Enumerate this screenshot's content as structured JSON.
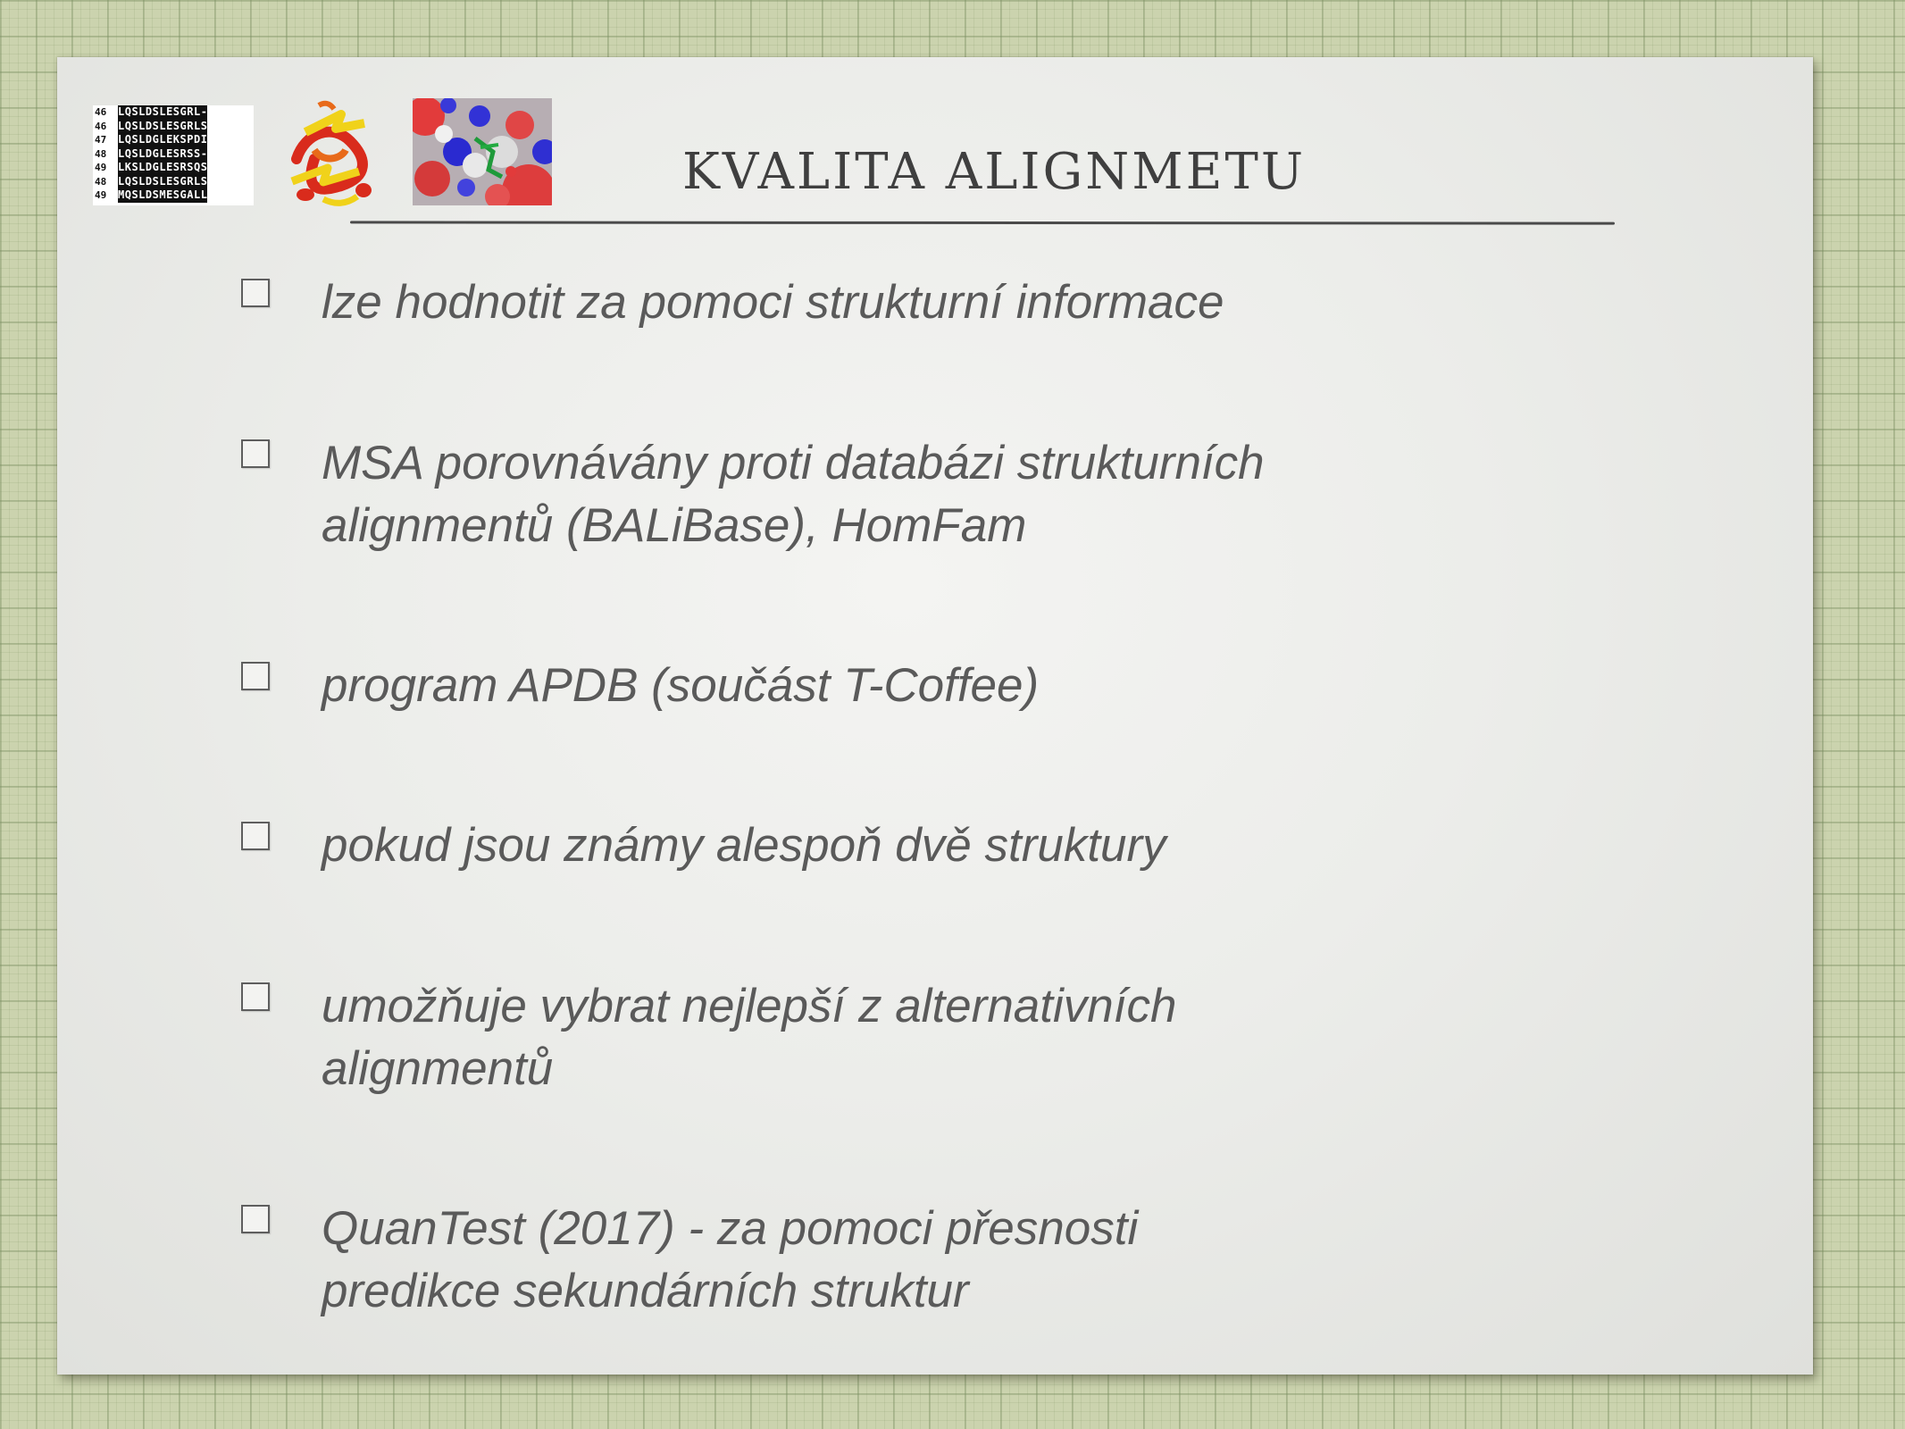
{
  "slide": {
    "title": "KVALITA ALIGNMETU",
    "bullets": [
      {
        "text": "lze hodnotit za pomoci strukturní informace"
      },
      {
        "text": "MSA porovnávány proti databázi strukturních alignmentů (BALiBase), HomFam"
      },
      {
        "text": "program APDB (součást T-Coffee)"
      },
      {
        "text": "pokud jsou známy alespoň dvě struktury"
      },
      {
        "text": "umožňuje vybrat nejlepší z alternativních alignmentů"
      },
      {
        "text": "QuanTest (2017) - za pomoci přesnosti predikce sekundárních struktur"
      }
    ]
  },
  "header_images": {
    "alignment": {
      "rows": [
        {
          "num": "46",
          "seq": "LQSLDSLESGRL-"
        },
        {
          "num": "46",
          "seq": "LQSLDSLESGRLS"
        },
        {
          "num": "47",
          "seq": "LQSLDGLEKSPDI"
        },
        {
          "num": "48",
          "seq": "LQSLDGLESRSS-"
        },
        {
          "num": "49",
          "seq": "LKSLDGLESRSQS"
        },
        {
          "num": "48",
          "seq": "LQSLDSLESGRLS"
        },
        {
          "num": "49",
          "seq": "MQSLDSMESGALL"
        }
      ]
    },
    "ribbon_icon": "protein-ribbon-image",
    "surface_icon": "protein-surface-image"
  },
  "colors": {
    "background": "#cbd3ae",
    "slide": "#ecedea",
    "text": "#5a5a5a",
    "title": "#3f3f3f"
  }
}
